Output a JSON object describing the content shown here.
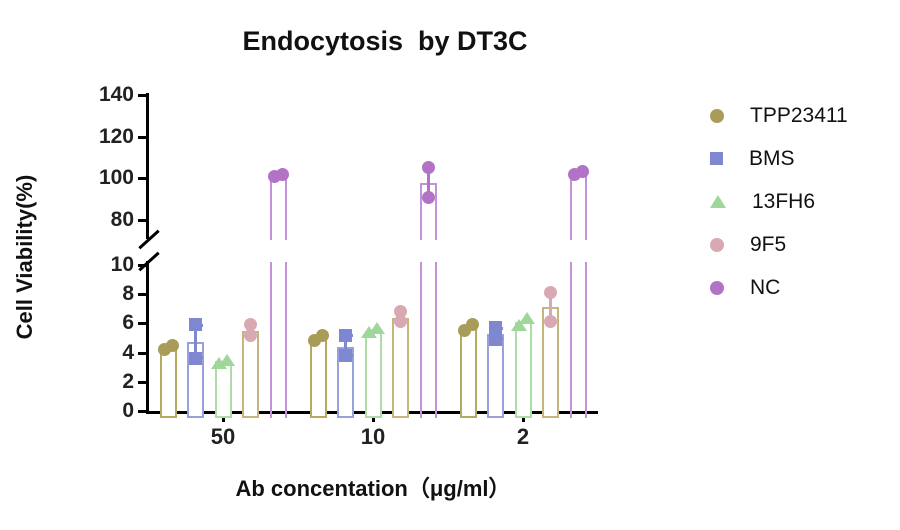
{
  "chart_data": {
    "type": "bar",
    "title": "Endocytosis  by DT3C",
    "xlabel": "Ab concentation（μg/ml）",
    "ylabel": "Cell Viability(%)",
    "legend_position": "right",
    "categories": [
      "50",
      "10",
      "2"
    ],
    "axis_break": true,
    "y_axis": {
      "lower_range": [
        0,
        10
      ],
      "lower_ticks": [
        0,
        2,
        4,
        6,
        8,
        10
      ],
      "upper_range": [
        80,
        140
      ],
      "upper_ticks": [
        80,
        100,
        120,
        140
      ]
    },
    "series": [
      {
        "name": "TPP23411",
        "marker": "circle",
        "color": "#a89c58",
        "bar_color": "#b5aa61",
        "means": [
          4.4,
          5.0,
          5.7
        ],
        "points": [
          [
            4.2,
            4.5
          ],
          [
            4.8,
            5.2
          ],
          [
            5.5,
            5.9
          ]
        ],
        "error_bar": [
          false,
          false,
          false
        ],
        "error_caps": false
      },
      {
        "name": "BMS",
        "marker": "square",
        "color": "#7f87d0",
        "bar_color": "#99a1dd",
        "means": [
          4.7,
          4.4,
          5.3
        ],
        "points": [
          [
            3.6,
            5.9
          ],
          [
            3.8,
            5.2
          ],
          [
            4.9,
            5.7
          ]
        ],
        "error_bar": [
          true,
          true,
          true
        ],
        "error_caps": true
      },
      {
        "name": "13FH6",
        "marker": "triangle",
        "color": "#9fd69a",
        "bar_color": "#aedca9",
        "means": [
          3.4,
          5.5,
          6.1
        ],
        "points": [
          [
            3.3,
            3.5
          ],
          [
            5.4,
            5.7
          ],
          [
            5.9,
            6.4
          ]
        ],
        "error_bar": [
          false,
          false,
          false
        ],
        "error_caps": false
      },
      {
        "name": "9F5",
        "marker": "circle",
        "color": "#d8a9b2",
        "bar_color": "#c6b57f",
        "means": [
          5.5,
          6.4,
          7.1
        ],
        "points": [
          [
            5.2,
            5.9
          ],
          [
            6.1,
            6.8
          ],
          [
            6.1,
            8.1
          ]
        ],
        "error_bar": [
          false,
          false,
          true
        ],
        "error_caps": false
      },
      {
        "name": "NC",
        "marker": "circle",
        "color": "#b273c7",
        "bar_color": "#c391d8",
        "means": [
          101.5,
          98,
          103
        ],
        "points": [
          [
            101,
            102
          ],
          [
            91,
            105
          ],
          [
            102,
            103.5
          ]
        ],
        "error_bar": [
          false,
          true,
          false
        ],
        "error_caps": false
      }
    ]
  }
}
